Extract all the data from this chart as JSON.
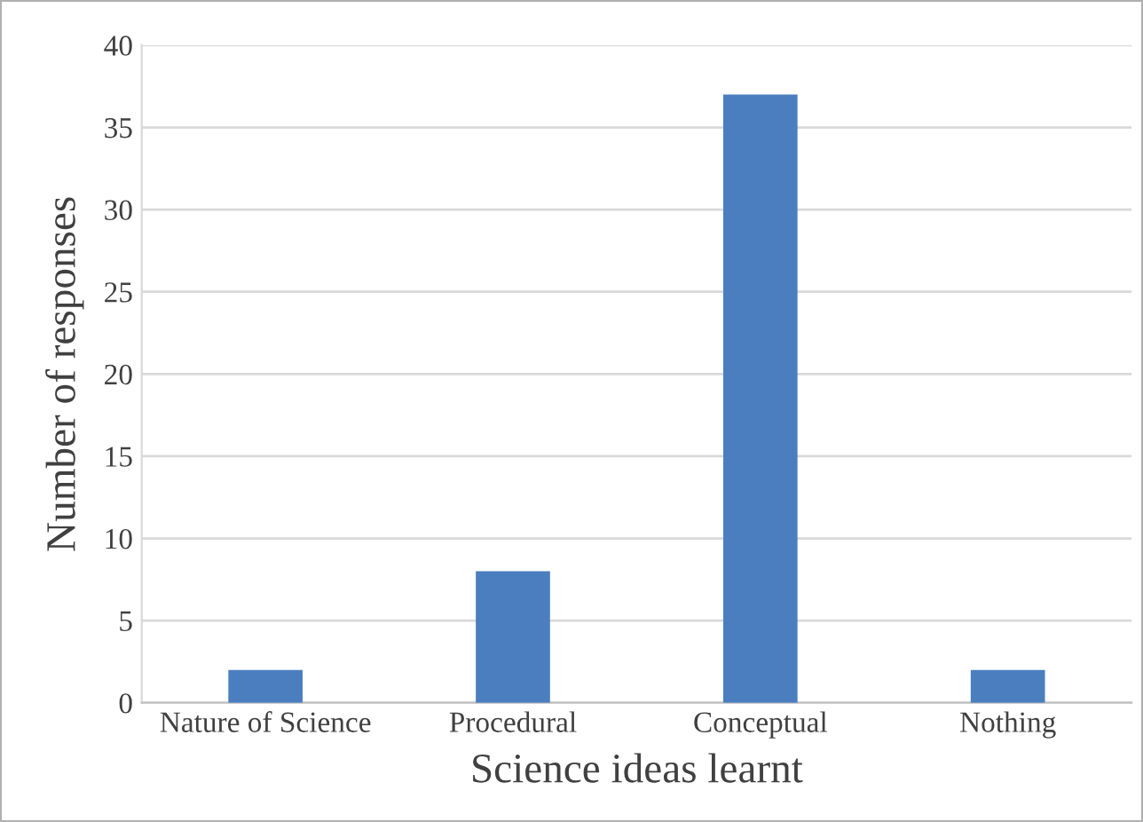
{
  "chart_data": {
    "type": "bar",
    "xlabel": "Science ideas learnt",
    "ylabel": "Number of responses",
    "categories": [
      "Nature of Science",
      "Procedural",
      "Conceptual",
      "Nothing"
    ],
    "values": [
      2,
      8,
      37,
      2
    ],
    "color": "#4a7ebf",
    "ylim": [
      0,
      40
    ],
    "yticks": [
      0,
      5,
      10,
      15,
      20,
      25,
      30,
      35,
      40
    ],
    "grid": "y",
    "legend": false
  }
}
